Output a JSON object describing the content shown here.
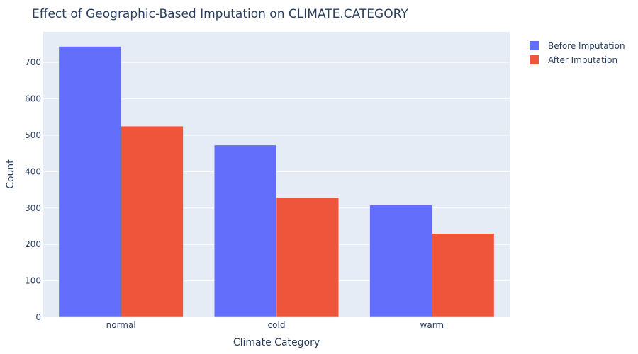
{
  "chart_data": {
    "type": "bar",
    "title": "Effect of Geographic-Based Imputation on CLIMATE.CATEGORY",
    "xlabel": "Climate Category",
    "ylabel": "Count",
    "categories": [
      "normal",
      "cold",
      "warm"
    ],
    "series": [
      {
        "name": "Before Imputation",
        "color": "#636efa",
        "values": [
          744,
          473,
          308
        ]
      },
      {
        "name": "After Imputation",
        "color": "#ef553b",
        "values": [
          525,
          329,
          230
        ]
      }
    ],
    "ylim": [
      0,
      784
    ],
    "yticks": [
      0,
      100,
      200,
      300,
      400,
      500,
      600,
      700
    ],
    "grid": true,
    "legend_position": "top-right",
    "plot_background": "#e5ecf6"
  }
}
